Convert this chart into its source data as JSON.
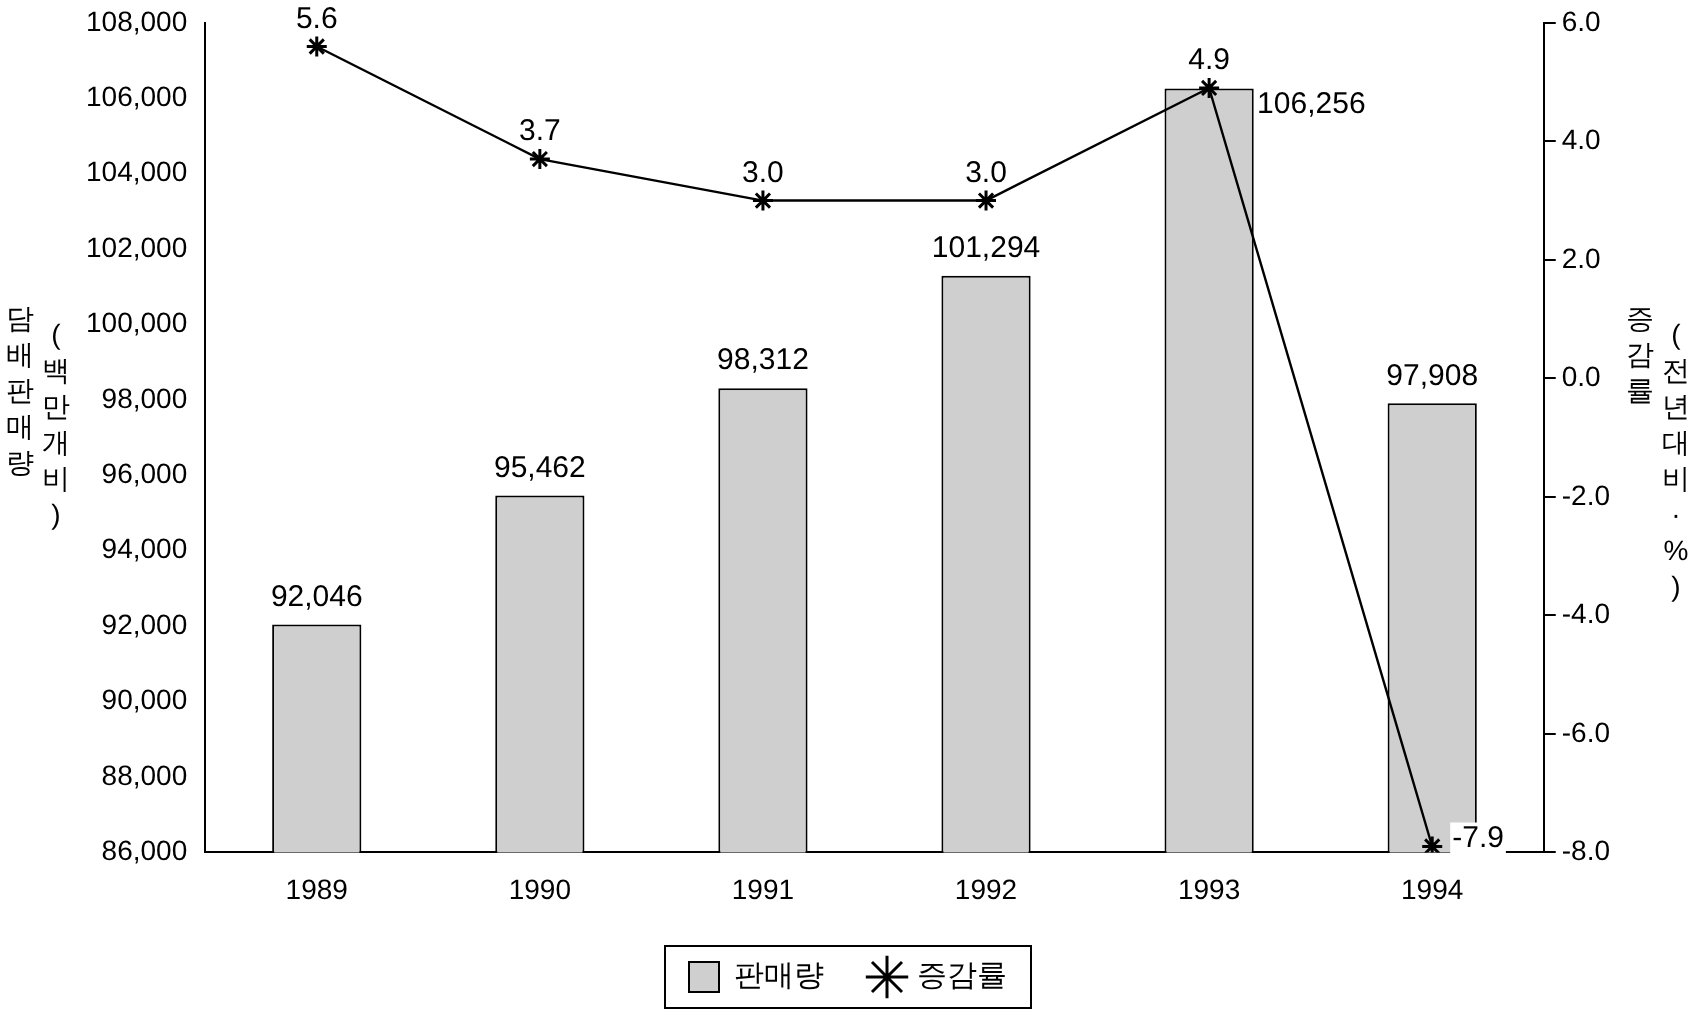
{
  "chart_data": {
    "type": "bar",
    "categories": [
      "1989",
      "1990",
      "1991",
      "1992",
      "1993",
      "1994"
    ],
    "ylabel": "담배판매량 (백만개비)",
    "y2label": "증감률 (전년대비·%)",
    "series": [
      {
        "name": "판매량",
        "color": "#cfcfcf",
        "values": [
          92046,
          95462,
          98312,
          101294,
          106256,
          97908
        ]
      },
      {
        "name": "증감률",
        "type": "line",
        "axis": "y2",
        "color": "#000000",
        "marker": "cross",
        "values": [
          5.6,
          3.7,
          3.0,
          3.0,
          4.9,
          -7.9
        ]
      }
    ],
    "value_labels": [
      [
        "92,046",
        "95,462",
        "98,312",
        "101,294",
        "106,256",
        "97,908"
      ],
      [
        "5.6",
        "3.7",
        "3.0",
        "3.0",
        "4.9",
        "-7.9"
      ]
    ],
    "ylim": [
      86000,
      108000
    ],
    "yticks": [
      {
        "value": 86000,
        "label": "86,000"
      },
      {
        "value": 88000,
        "label": "88,000"
      },
      {
        "value": 90000,
        "label": "90,000"
      },
      {
        "value": 92000,
        "label": "92,000"
      },
      {
        "value": 94000,
        "label": "94,000"
      },
      {
        "value": 96000,
        "label": "96,000"
      },
      {
        "value": 98000,
        "label": "98,000"
      },
      {
        "value": 100000,
        "label": "100,000"
      },
      {
        "value": 102000,
        "label": "102,000"
      },
      {
        "value": 104000,
        "label": "104,000"
      },
      {
        "value": 106000,
        "label": "106,000"
      },
      {
        "value": 108000,
        "label": "108,000"
      }
    ],
    "y2lim": [
      -8,
      6
    ],
    "y2ticks": [
      {
        "value": -8,
        "label": "-8.0"
      },
      {
        "value": -6,
        "label": "-6.0"
      },
      {
        "value": -4,
        "label": "-4.0"
      },
      {
        "value": -2,
        "label": "-2.0"
      },
      {
        "value": 0,
        "label": "0.0"
      },
      {
        "value": 2,
        "label": "2.0"
      },
      {
        "value": 4,
        "label": "4.0"
      },
      {
        "value": 6,
        "label": "6.0"
      }
    ],
    "grid": false,
    "legend": "bottom"
  }
}
